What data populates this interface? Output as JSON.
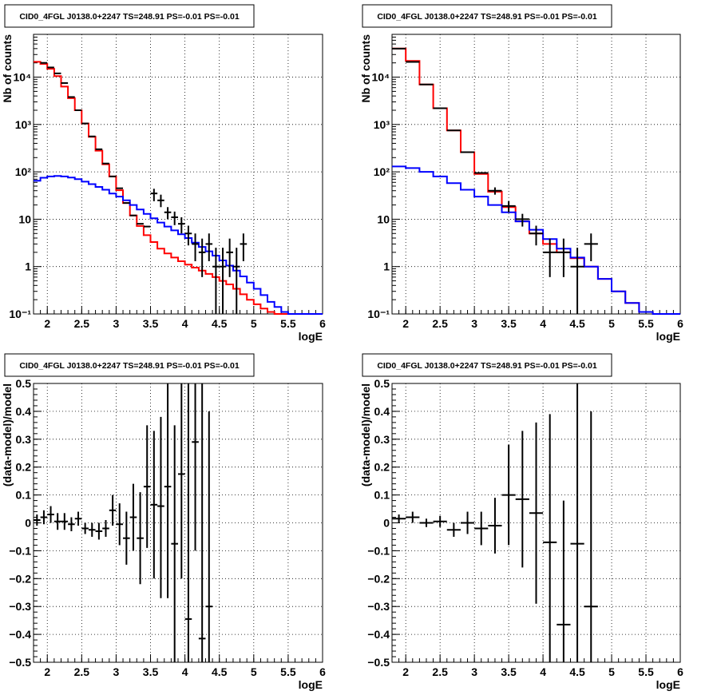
{
  "chart_data": [
    {
      "type": "line",
      "title": "CID0_4FGL J0138.0+2247 TS=248.91 PS=-0.01 PS=-0.01",
      "xlabel": "logE",
      "ylabel": "Nb of counts",
      "yscale": "log",
      "xlim": [
        1.8,
        6.0
      ],
      "ylim": [
        0.1,
        80000
      ],
      "x_ticks": [
        {
          "v": 2,
          "label": "2"
        },
        {
          "v": 2.5,
          "label": "2.5"
        },
        {
          "v": 3,
          "label": "3"
        },
        {
          "v": 3.5,
          "label": "3.5"
        },
        {
          "v": 4,
          "label": "4"
        },
        {
          "v": 4.5,
          "label": "4.5"
        },
        {
          "v": 5,
          "label": "5"
        },
        {
          "v": 5.5,
          "label": "5.5"
        },
        {
          "v": 6,
          "label": "6"
        }
      ],
      "y_ticks": [
        {
          "v": 0.1,
          "label": "10⁻¹"
        },
        {
          "v": 1,
          "label": "1"
        },
        {
          "v": 10,
          "label": "10"
        },
        {
          "v": 100,
          "label": "10²"
        },
        {
          "v": 1000,
          "label": "10³"
        },
        {
          "v": 10000,
          "label": "10⁴"
        }
      ],
      "grid": true,
      "bin_edges": [
        1.8,
        1.9,
        2.0,
        2.1,
        2.2,
        2.3,
        2.4,
        2.5,
        2.6,
        2.7,
        2.8,
        2.9,
        3.0,
        3.1,
        3.2,
        3.3,
        3.4,
        3.5,
        3.6,
        3.7,
        3.8,
        3.9,
        4.0,
        4.1,
        4.2,
        4.3,
        4.4,
        4.5,
        4.6,
        4.7,
        4.8,
        4.9,
        5.0,
        5.1,
        5.2,
        5.3,
        5.4,
        5.5,
        5.6,
        5.7,
        5.8,
        5.9,
        6.0
      ],
      "series": [
        {
          "color": "#ff0000",
          "values": [
            21000,
            19000,
            15000,
            10500,
            6300,
            3600,
            2000,
            1050,
            550,
            280,
            145,
            80,
            41,
            22,
            12,
            7.2,
            4.6,
            3.3,
            2.4,
            1.9,
            1.55,
            1.3,
            1.1,
            0.95,
            0.82,
            0.7,
            0.6,
            0.5,
            0.42,
            0.34,
            0.26,
            0.2,
            0.16,
            0.13,
            0.11,
            0.1,
            0.1,
            0.1,
            0.1,
            0.1,
            0.1,
            0.1
          ]
        },
        {
          "color": "#0000ff",
          "values": [
            65,
            75,
            80,
            82,
            80,
            76,
            70,
            62,
            55,
            48,
            42,
            35,
            30,
            25,
            20,
            16,
            13,
            10.5,
            8.5,
            7,
            5.8,
            4.8,
            4,
            3.2,
            2.6,
            2.1,
            1.7,
            1.35,
            1.05,
            0.82,
            0.62,
            0.46,
            0.34,
            0.25,
            0.18,
            0.14,
            0.11,
            0.1,
            0.1,
            0.1,
            0.1,
            0.1
          ]
        }
      ],
      "data_points": [
        {
          "x": 1.95,
          "y": 20000
        },
        {
          "x": 2.05,
          "y": 16000
        },
        {
          "x": 2.15,
          "y": 12000
        },
        {
          "x": 2.25,
          "y": 7500
        },
        {
          "x": 2.35,
          "y": 3800
        },
        {
          "x": 2.45,
          "y": 2000
        },
        {
          "x": 2.55,
          "y": 1050
        },
        {
          "x": 2.65,
          "y": 560
        },
        {
          "x": 2.75,
          "y": 300
        },
        {
          "x": 2.85,
          "y": 150
        },
        {
          "x": 2.95,
          "y": 80
        },
        {
          "x": 3.05,
          "y": 45
        },
        {
          "x": 3.15,
          "y": 22
        },
        {
          "x": 3.25,
          "y": 12
        },
        {
          "x": 3.35,
          "y": 8
        },
        {
          "x": 3.45,
          "y": 7
        },
        {
          "x": 3.55,
          "y": 35,
          "ylo": 24,
          "yhi": 44
        },
        {
          "x": 3.65,
          "y": 25,
          "ylo": 18,
          "yhi": 33
        },
        {
          "x": 3.75,
          "y": 14,
          "ylo": 10,
          "yhi": 18
        },
        {
          "x": 3.85,
          "y": 11,
          "ylo": 7.5,
          "yhi": 14.5
        },
        {
          "x": 3.95,
          "y": 8,
          "ylo": 5,
          "yhi": 11
        },
        {
          "x": 4.05,
          "y": 5,
          "ylo": 2.8,
          "yhi": 7.3
        },
        {
          "x": 4.15,
          "y": 3,
          "ylo": 1.3,
          "yhi": 5
        },
        {
          "x": 4.25,
          "y": 2,
          "ylo": 0.6,
          "yhi": 3.9
        },
        {
          "x": 4.35,
          "y": 3,
          "ylo": 1.3,
          "yhi": 5
        },
        {
          "x": 4.45,
          "y": 1,
          "ylo": 0.1,
          "yhi": 2.5
        },
        {
          "x": 4.55,
          "y": 1,
          "ylo": 0.1,
          "yhi": 2.5
        },
        {
          "x": 4.65,
          "y": 2,
          "ylo": 0.6,
          "yhi": 3.9
        },
        {
          "x": 4.75,
          "y": 1,
          "ylo": 0.1,
          "yhi": 2.5
        },
        {
          "x": 4.85,
          "y": 3,
          "ylo": 1.3,
          "yhi": 5
        }
      ]
    },
    {
      "type": "line",
      "title": "CID0_4FGL J0138.0+2247 TS=248.91 PS=-0.01 PS=-0.01",
      "xlabel": "logE",
      "ylabel": "Nb of counts",
      "yscale": "log",
      "xlim": [
        1.8,
        6.0
      ],
      "ylim": [
        0.1,
        80000
      ],
      "x_ticks": [
        {
          "v": 2,
          "label": "2"
        },
        {
          "v": 2.5,
          "label": "2.5"
        },
        {
          "v": 3,
          "label": "3"
        },
        {
          "v": 3.5,
          "label": "3.5"
        },
        {
          "v": 4,
          "label": "4"
        },
        {
          "v": 4.5,
          "label": "4.5"
        },
        {
          "v": 5,
          "label": "5"
        },
        {
          "v": 5.5,
          "label": "5.5"
        },
        {
          "v": 6,
          "label": "6"
        }
      ],
      "y_ticks": [
        {
          "v": 0.1,
          "label": "10⁻¹"
        },
        {
          "v": 1,
          "label": "1"
        },
        {
          "v": 10,
          "label": "10"
        },
        {
          "v": 100,
          "label": "10²"
        },
        {
          "v": 1000,
          "label": "10³"
        },
        {
          "v": 10000,
          "label": "10⁴"
        }
      ],
      "grid": true,
      "bin_edges": [
        1.8,
        2.0,
        2.2,
        2.4,
        2.6,
        2.8,
        3.0,
        3.2,
        3.4,
        3.6,
        3.8,
        4.0,
        4.2,
        4.4,
        4.6,
        4.8,
        5.0,
        5.2,
        5.4,
        5.6,
        5.8,
        6.0
      ],
      "series": [
        {
          "color": "#ff0000",
          "values": [
            40000,
            22000,
            7000,
            2200,
            750,
            260,
            90,
            38,
            18,
            9,
            5,
            3,
            2,
            1.5,
            1,
            0.55,
            0.3,
            0.17,
            0.11,
            0.1,
            0.1
          ]
        },
        {
          "color": "#0000ff",
          "values": [
            130,
            120,
            100,
            80,
            58,
            42,
            30,
            20,
            14,
            9,
            6,
            3.8,
            2.4,
            1.55,
            1,
            0.55,
            0.3,
            0.17,
            0.11,
            0.1,
            0.1
          ]
        }
      ],
      "data_points": [
        {
          "x": 1.9,
          "y": 40000
        },
        {
          "x": 2.1,
          "y": 21000
        },
        {
          "x": 2.3,
          "y": 7000
        },
        {
          "x": 2.5,
          "y": 2200
        },
        {
          "x": 2.7,
          "y": 750
        },
        {
          "x": 2.9,
          "y": 260
        },
        {
          "x": 3.1,
          "y": 95
        },
        {
          "x": 3.3,
          "y": 40,
          "ylo": 33,
          "yhi": 47
        },
        {
          "x": 3.5,
          "y": 19,
          "ylo": 14,
          "yhi": 24
        },
        {
          "x": 3.7,
          "y": 10,
          "ylo": 7,
          "yhi": 13
        },
        {
          "x": 3.9,
          "y": 5,
          "ylo": 2.8,
          "yhi": 7.3
        },
        {
          "x": 4.1,
          "y": 2,
          "ylo": 0.6,
          "yhi": 3.9
        },
        {
          "x": 4.3,
          "y": 2,
          "ylo": 0.6,
          "yhi": 3.9
        },
        {
          "x": 4.5,
          "y": 1,
          "ylo": 0.1,
          "yhi": 2.5
        },
        {
          "x": 4.7,
          "y": 3,
          "ylo": 1.3,
          "yhi": 5
        }
      ]
    },
    {
      "type": "scatter",
      "title": "CID0_4FGL J0138.0+2247 TS=248.91 PS=-0.01 PS=-0.01",
      "xlabel": "logE",
      "ylabel": "(data-model)/model",
      "yscale": "linear",
      "xlim": [
        1.8,
        6.0
      ],
      "ylim": [
        -0.5,
        0.5
      ],
      "x_ticks": [
        {
          "v": 2,
          "label": "2"
        },
        {
          "v": 2.5,
          "label": "2.5"
        },
        {
          "v": 3,
          "label": "3"
        },
        {
          "v": 3.5,
          "label": "3.5"
        },
        {
          "v": 4,
          "label": "4"
        },
        {
          "v": 4.5,
          "label": "4.5"
        },
        {
          "v": 5,
          "label": "5"
        },
        {
          "v": 5.5,
          "label": "5.5"
        },
        {
          "v": 6,
          "label": "6"
        }
      ],
      "y_ticks": [
        {
          "v": -0.5,
          "label": "−0.5"
        },
        {
          "v": -0.4,
          "label": "−0.4"
        },
        {
          "v": -0.3,
          "label": "−0.3"
        },
        {
          "v": -0.2,
          "label": "−0.2"
        },
        {
          "v": -0.1,
          "label": "−0.1"
        },
        {
          "v": 0,
          "label": "0"
        },
        {
          "v": 0.1,
          "label": "0.1"
        },
        {
          "v": 0.2,
          "label": "0.2"
        },
        {
          "v": 0.3,
          "label": "0.3"
        },
        {
          "v": 0.4,
          "label": "0.4"
        },
        {
          "v": 0.5,
          "label": "0.5"
        }
      ],
      "grid": true,
      "xerr": 0.05,
      "data_points": [
        {
          "x": 1.85,
          "y": 0.01,
          "ylo": -0.01,
          "yhi": 0.03
        },
        {
          "x": 1.95,
          "y": 0.02,
          "ylo": -0.005,
          "yhi": 0.045
        },
        {
          "x": 2.05,
          "y": 0.03,
          "ylo": 0.0,
          "yhi": 0.06
        },
        {
          "x": 2.15,
          "y": 0.005,
          "ylo": -0.025,
          "yhi": 0.035
        },
        {
          "x": 2.25,
          "y": 0.005,
          "ylo": -0.025,
          "yhi": 0.035
        },
        {
          "x": 2.35,
          "y": -0.005,
          "ylo": -0.03,
          "yhi": 0.02
        },
        {
          "x": 2.45,
          "y": 0.015,
          "ylo": -0.01,
          "yhi": 0.04
        },
        {
          "x": 2.55,
          "y": -0.02,
          "ylo": -0.04,
          "yhi": 0.0
        },
        {
          "x": 2.65,
          "y": -0.025,
          "ylo": -0.05,
          "yhi": 0.0
        },
        {
          "x": 2.75,
          "y": -0.03,
          "ylo": -0.06,
          "yhi": 0.0
        },
        {
          "x": 2.85,
          "y": -0.02,
          "ylo": -0.05,
          "yhi": 0.01
        },
        {
          "x": 2.95,
          "y": 0.045,
          "ylo": -0.01,
          "yhi": 0.1
        },
        {
          "x": 3.05,
          "y": -0.005,
          "ylo": -0.08,
          "yhi": 0.07
        },
        {
          "x": 3.15,
          "y": -0.055,
          "ylo": -0.15,
          "yhi": 0.04
        },
        {
          "x": 3.25,
          "y": 0.02,
          "ylo": -0.1,
          "yhi": 0.14
        },
        {
          "x": 3.35,
          "y": -0.055,
          "ylo": -0.22,
          "yhi": 0.11
        },
        {
          "x": 3.45,
          "y": 0.13,
          "ylo": -0.09,
          "yhi": 0.35
        },
        {
          "x": 3.55,
          "y": 0.065,
          "ylo": -0.2,
          "yhi": 0.33
        },
        {
          "x": 3.65,
          "y": 0.06,
          "ylo": -0.27,
          "yhi": 0.38
        },
        {
          "x": 3.75,
          "y": 0.13,
          "ylo": -0.27,
          "yhi": 0.5
        },
        {
          "x": 3.85,
          "y": -0.075,
          "ylo": -0.5,
          "yhi": 0.35
        },
        {
          "x": 3.95,
          "y": 0.175,
          "ylo": -0.2,
          "yhi": 0.5
        },
        {
          "x": 4.05,
          "y": -0.345,
          "ylo": -0.5,
          "yhi": 0.5
        },
        {
          "x": 4.15,
          "y": 0.29,
          "ylo": -0.1,
          "yhi": 0.5
        },
        {
          "x": 4.25,
          "y": -0.415,
          "ylo": -0.5,
          "yhi": 0.5
        },
        {
          "x": 4.35,
          "y": -0.3,
          "ylo": -0.5,
          "yhi": 0.4
        }
      ]
    },
    {
      "type": "scatter",
      "title": "CID0_4FGL J0138.0+2247 TS=248.91 PS=-0.01 PS=-0.01",
      "xlabel": "logE",
      "ylabel": "(data-model)/model",
      "yscale": "linear",
      "xlim": [
        1.8,
        6.0
      ],
      "ylim": [
        -0.5,
        0.5
      ],
      "x_ticks": [
        {
          "v": 2,
          "label": "2"
        },
        {
          "v": 2.5,
          "label": "2.5"
        },
        {
          "v": 3,
          "label": "3"
        },
        {
          "v": 3.5,
          "label": "3.5"
        },
        {
          "v": 4,
          "label": "4"
        },
        {
          "v": 4.5,
          "label": "4.5"
        },
        {
          "v": 5,
          "label": "5"
        },
        {
          "v": 5.5,
          "label": "5.5"
        },
        {
          "v": 6,
          "label": "6"
        }
      ],
      "y_ticks": [
        {
          "v": -0.5,
          "label": "−0.5"
        },
        {
          "v": -0.4,
          "label": "−0.4"
        },
        {
          "v": -0.3,
          "label": "−0.3"
        },
        {
          "v": -0.2,
          "label": "−0.2"
        },
        {
          "v": -0.1,
          "label": "−0.1"
        },
        {
          "v": 0,
          "label": "0"
        },
        {
          "v": 0.1,
          "label": "0.1"
        },
        {
          "v": 0.2,
          "label": "0.2"
        },
        {
          "v": 0.3,
          "label": "0.3"
        },
        {
          "v": 0.4,
          "label": "0.4"
        },
        {
          "v": 0.5,
          "label": "0.5"
        }
      ],
      "grid": true,
      "xerr": 0.1,
      "data_points": [
        {
          "x": 1.9,
          "y": 0.015,
          "ylo": 0.0,
          "yhi": 0.03
        },
        {
          "x": 2.1,
          "y": 0.02,
          "ylo": 0.0,
          "yhi": 0.04
        },
        {
          "x": 2.3,
          "y": 0.0,
          "ylo": -0.015,
          "yhi": 0.015
        },
        {
          "x": 2.5,
          "y": 0.005,
          "ylo": -0.015,
          "yhi": 0.025
        },
        {
          "x": 2.7,
          "y": -0.025,
          "ylo": -0.05,
          "yhi": 0.0
        },
        {
          "x": 2.9,
          "y": 0.0,
          "ylo": -0.04,
          "yhi": 0.04
        },
        {
          "x": 3.1,
          "y": -0.02,
          "ylo": -0.08,
          "yhi": 0.04
        },
        {
          "x": 3.3,
          "y": -0.01,
          "ylo": -0.11,
          "yhi": 0.09
        },
        {
          "x": 3.5,
          "y": 0.1,
          "ylo": -0.08,
          "yhi": 0.28
        },
        {
          "x": 3.7,
          "y": 0.085,
          "ylo": -0.16,
          "yhi": 0.33
        },
        {
          "x": 3.9,
          "y": 0.035,
          "ylo": -0.29,
          "yhi": 0.36
        },
        {
          "x": 4.1,
          "y": -0.07,
          "ylo": -0.5,
          "yhi": 0.39
        },
        {
          "x": 4.3,
          "y": -0.365,
          "ylo": -0.5,
          "yhi": 0.08
        },
        {
          "x": 4.5,
          "y": -0.075,
          "ylo": -0.5,
          "yhi": 0.5
        },
        {
          "x": 4.7,
          "y": -0.3,
          "ylo": -0.5,
          "yhi": 0.4
        }
      ]
    }
  ]
}
